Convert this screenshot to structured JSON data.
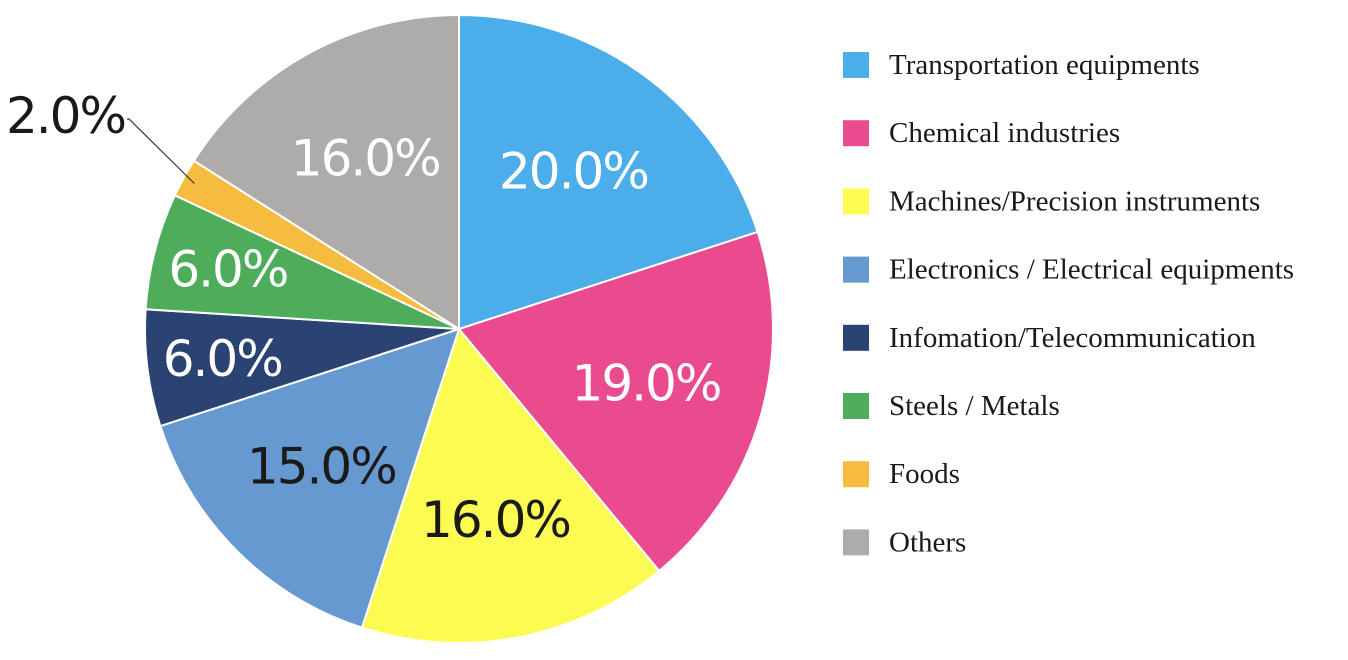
{
  "chart_data": {
    "type": "pie",
    "categories": [
      "Transportation equipments",
      "Chemical industries",
      "Machines/Precision instruments",
      "Electronics / Electrical equipments",
      "Infomation/Telecommunication",
      "Steels / Metals",
      "Foods",
      "Others"
    ],
    "values": [
      20.0,
      19.0,
      16.0,
      15.0,
      6.0,
      6.0,
      2.0,
      16.0
    ],
    "labels": [
      "20.0%",
      "19.0%",
      "16.0%",
      "15.0%",
      "6.0%",
      "6.0%",
      "2.0%",
      "16.0%"
    ],
    "colors": [
      "#4BAEEA",
      "#EA4A8E",
      "#FCFB52",
      "#6699D0",
      "#2A4373",
      "#4EAD5B",
      "#F5BC40",
      "#ADACAA"
    ],
    "label_colors": [
      "#ffffff",
      "#ffffff",
      "#1a1a1a",
      "#1a1a1a",
      "#ffffff",
      "#ffffff",
      "#1a1a1a",
      "#ffffff"
    ],
    "legend_position": "right",
    "start_angle": "12 o'clock",
    "direction": "clockwise"
  }
}
